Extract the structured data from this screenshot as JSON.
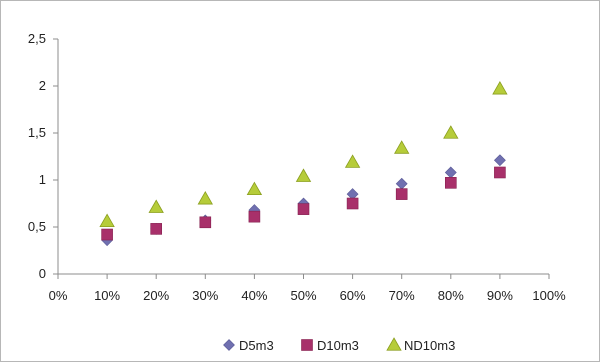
{
  "chart_data": {
    "type": "scatter",
    "title": "",
    "xlabel": "",
    "ylabel": "",
    "x_tick_labels": [
      "0%",
      "10%",
      "20%",
      "30%",
      "40%",
      "50%",
      "60%",
      "70%",
      "80%",
      "90%",
      "100%"
    ],
    "y_tick_labels": [
      "0",
      "0,5",
      "1",
      "1,5",
      "2",
      "2,5"
    ],
    "xlim": [
      0,
      100
    ],
    "ylim": [
      0,
      2.5
    ],
    "grid": false,
    "legend_position": "bottom",
    "x": [
      10,
      20,
      30,
      40,
      50,
      60,
      70,
      80,
      90
    ],
    "series": [
      {
        "name": "D5m3",
        "marker": "diamond",
        "color": "#7070B0",
        "values": [
          0.36,
          0.48,
          0.57,
          0.68,
          0.75,
          0.85,
          0.96,
          1.08,
          1.21
        ]
      },
      {
        "name": "D10m3",
        "marker": "square",
        "color": "#A8306A",
        "values": [
          0.42,
          0.48,
          0.55,
          0.61,
          0.69,
          0.75,
          0.85,
          0.97,
          1.08
        ]
      },
      {
        "name": "ND10m3",
        "marker": "triangle",
        "color": "#B6CC3A",
        "values": [
          0.56,
          0.71,
          0.8,
          0.9,
          1.04,
          1.19,
          1.34,
          1.5,
          1.97
        ]
      }
    ]
  }
}
